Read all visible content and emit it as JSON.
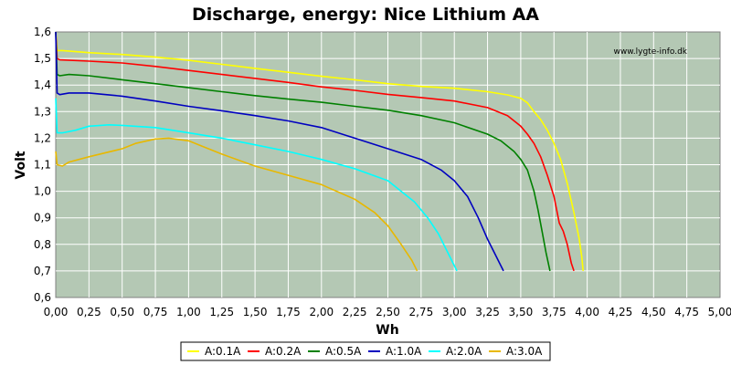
{
  "chart_data": {
    "type": "line",
    "title": "Discharge, energy: Nice Lithium AA",
    "xlabel": "Wh",
    "ylabel": "Volt",
    "xlim": [
      0,
      5
    ],
    "ylim": [
      0.6,
      1.6
    ],
    "xticks": [
      "0,00",
      "0,25",
      "0,50",
      "0,75",
      "1,00",
      "1,25",
      "1,50",
      "1,75",
      "2,00",
      "2,25",
      "2,50",
      "2,75",
      "3,00",
      "3,25",
      "3,50",
      "3,75",
      "4,00",
      "4,25",
      "4,50",
      "4,75",
      "5,00"
    ],
    "yticks": [
      "0,6",
      "0,7",
      "0,8",
      "0,9",
      "1,0",
      "1,1",
      "1,2",
      "1,3",
      "1,4",
      "1,5",
      "1,6"
    ],
    "watermark": "www.lygte-info.dk",
    "grid": true,
    "legend_position": "bottom",
    "series": [
      {
        "name": "A:0.1A",
        "color": "#ffff00",
        "points": [
          [
            0,
            1.6
          ],
          [
            0.01,
            1.53
          ],
          [
            0.05,
            1.53
          ],
          [
            0.25,
            1.522
          ],
          [
            0.5,
            1.515
          ],
          [
            0.75,
            1.505
          ],
          [
            1.0,
            1.493
          ],
          [
            1.25,
            1.478
          ],
          [
            1.5,
            1.463
          ],
          [
            1.75,
            1.448
          ],
          [
            2.0,
            1.433
          ],
          [
            2.25,
            1.42
          ],
          [
            2.5,
            1.405
          ],
          [
            2.75,
            1.395
          ],
          [
            3.0,
            1.388
          ],
          [
            3.25,
            1.375
          ],
          [
            3.4,
            1.363
          ],
          [
            3.5,
            1.35
          ],
          [
            3.55,
            1.333
          ],
          [
            3.6,
            1.3
          ],
          [
            3.65,
            1.27
          ],
          [
            3.7,
            1.23
          ],
          [
            3.75,
            1.18
          ],
          [
            3.8,
            1.12
          ],
          [
            3.85,
            1.03
          ],
          [
            3.9,
            0.92
          ],
          [
            3.94,
            0.82
          ],
          [
            3.96,
            0.75
          ],
          [
            3.97,
            0.7
          ]
        ]
      },
      {
        "name": "A:0.2A",
        "color": "#ff0000",
        "points": [
          [
            0,
            1.6
          ],
          [
            0.01,
            1.5
          ],
          [
            0.03,
            1.495
          ],
          [
            0.25,
            1.49
          ],
          [
            0.5,
            1.483
          ],
          [
            0.75,
            1.47
          ],
          [
            1.0,
            1.455
          ],
          [
            1.25,
            1.44
          ],
          [
            1.5,
            1.425
          ],
          [
            1.75,
            1.41
          ],
          [
            2.0,
            1.393
          ],
          [
            2.25,
            1.38
          ],
          [
            2.5,
            1.365
          ],
          [
            2.75,
            1.353
          ],
          [
            3.0,
            1.34
          ],
          [
            3.25,
            1.315
          ],
          [
            3.4,
            1.285
          ],
          [
            3.5,
            1.245
          ],
          [
            3.55,
            1.215
          ],
          [
            3.6,
            1.18
          ],
          [
            3.65,
            1.13
          ],
          [
            3.7,
            1.06
          ],
          [
            3.75,
            0.98
          ],
          [
            3.79,
            0.88
          ],
          [
            3.82,
            0.85
          ],
          [
            3.85,
            0.8
          ],
          [
            3.88,
            0.73
          ],
          [
            3.9,
            0.7
          ]
        ]
      },
      {
        "name": "A:0.5A",
        "color": "#008000",
        "points": [
          [
            0,
            1.6
          ],
          [
            0.01,
            1.44
          ],
          [
            0.03,
            1.435
          ],
          [
            0.1,
            1.44
          ],
          [
            0.25,
            1.435
          ],
          [
            0.5,
            1.42
          ],
          [
            0.75,
            1.405
          ],
          [
            1.0,
            1.39
          ],
          [
            1.25,
            1.375
          ],
          [
            1.5,
            1.36
          ],
          [
            1.75,
            1.347
          ],
          [
            2.0,
            1.335
          ],
          [
            2.25,
            1.32
          ],
          [
            2.5,
            1.305
          ],
          [
            2.75,
            1.285
          ],
          [
            3.0,
            1.258
          ],
          [
            3.25,
            1.215
          ],
          [
            3.35,
            1.19
          ],
          [
            3.45,
            1.15
          ],
          [
            3.5,
            1.12
          ],
          [
            3.55,
            1.08
          ],
          [
            3.6,
            1.0
          ],
          [
            3.63,
            0.93
          ],
          [
            3.66,
            0.85
          ],
          [
            3.69,
            0.77
          ],
          [
            3.72,
            0.7
          ]
        ]
      },
      {
        "name": "A:1.0A",
        "color": "#0000c0",
        "points": [
          [
            0,
            1.6
          ],
          [
            0.01,
            1.37
          ],
          [
            0.03,
            1.364
          ],
          [
            0.1,
            1.37
          ],
          [
            0.25,
            1.37
          ],
          [
            0.5,
            1.358
          ],
          [
            0.75,
            1.34
          ],
          [
            1.0,
            1.32
          ],
          [
            1.25,
            1.303
          ],
          [
            1.5,
            1.285
          ],
          [
            1.75,
            1.265
          ],
          [
            2.0,
            1.24
          ],
          [
            2.25,
            1.2
          ],
          [
            2.5,
            1.16
          ],
          [
            2.75,
            1.12
          ],
          [
            2.9,
            1.08
          ],
          [
            3.0,
            1.04
          ],
          [
            3.1,
            0.98
          ],
          [
            3.18,
            0.9
          ],
          [
            3.25,
            0.82
          ],
          [
            3.3,
            0.77
          ],
          [
            3.35,
            0.72
          ],
          [
            3.37,
            0.7
          ]
        ]
      },
      {
        "name": "A:2.0A",
        "color": "#00ffff",
        "points": [
          [
            0,
            1.35
          ],
          [
            0.01,
            1.22
          ],
          [
            0.05,
            1.22
          ],
          [
            0.15,
            1.23
          ],
          [
            0.25,
            1.245
          ],
          [
            0.4,
            1.25
          ],
          [
            0.5,
            1.248
          ],
          [
            0.75,
            1.24
          ],
          [
            1.0,
            1.22
          ],
          [
            1.25,
            1.2
          ],
          [
            1.5,
            1.175
          ],
          [
            1.75,
            1.15
          ],
          [
            2.0,
            1.12
          ],
          [
            2.25,
            1.085
          ],
          [
            2.5,
            1.04
          ],
          [
            2.6,
            1.0
          ],
          [
            2.7,
            0.96
          ],
          [
            2.8,
            0.9
          ],
          [
            2.88,
            0.84
          ],
          [
            2.95,
            0.77
          ],
          [
            3.0,
            0.72
          ],
          [
            3.02,
            0.7
          ]
        ]
      },
      {
        "name": "A:3.0A",
        "color": "#e8b800",
        "points": [
          [
            0,
            1.15
          ],
          [
            0.01,
            1.1
          ],
          [
            0.05,
            1.095
          ],
          [
            0.1,
            1.11
          ],
          [
            0.25,
            1.13
          ],
          [
            0.5,
            1.16
          ],
          [
            0.6,
            1.18
          ],
          [
            0.75,
            1.197
          ],
          [
            0.85,
            1.2
          ],
          [
            1.0,
            1.19
          ],
          [
            1.1,
            1.17
          ],
          [
            1.25,
            1.14
          ],
          [
            1.5,
            1.095
          ],
          [
            1.75,
            1.06
          ],
          [
            2.0,
            1.025
          ],
          [
            2.25,
            0.97
          ],
          [
            2.4,
            0.92
          ],
          [
            2.5,
            0.87
          ],
          [
            2.6,
            0.8
          ],
          [
            2.68,
            0.74
          ],
          [
            2.72,
            0.7
          ]
        ]
      }
    ]
  }
}
